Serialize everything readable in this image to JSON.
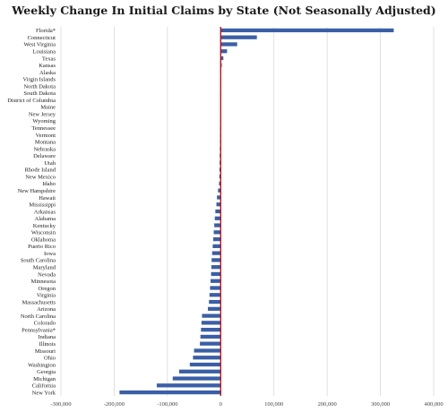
{
  "chart_data": {
    "type": "bar",
    "orientation": "horizontal",
    "title": "Weekly Change In Initial Claims by State (Not Seasonally Adjusted)",
    "xlabel": "",
    "ylabel": "",
    "xlim": [
      -300000,
      400000
    ],
    "x_ticks": [
      -300000,
      -200000,
      -100000,
      0,
      100000,
      200000,
      300000,
      400000
    ],
    "x_tick_labels": [
      "-300,000",
      "-200,000",
      "-100,000",
      "0",
      "100,000",
      "200,000",
      "300,000",
      "400,000"
    ],
    "grid": "vertical",
    "zero_line_color": "#cc0000",
    "bar_color": "#3a5fa6",
    "categories": [
      "Florida*",
      "Connecticut",
      "West Virginia",
      "Louisiana",
      "Texas",
      "Kansas",
      "Alaska",
      "Virgin Islands",
      "North Dakota",
      "South Dakota",
      "District of Columbia",
      "Maine",
      "New Jersey",
      "Wyoming",
      "Tennessee",
      "Vermont",
      "Montana",
      "Nebraska",
      "Delaware",
      "Utah",
      "Rhode Island",
      "New Mexico",
      "Idaho",
      "New Hampshire",
      "Hawaii",
      "Mississippi",
      "Arkansas",
      "Alabama",
      "Kentucky",
      "Wisconsin",
      "Oklahoma",
      "Puerto Rico",
      "Iowa",
      "South Carolina",
      "Maryland",
      "Nevada",
      "Minnesota",
      "Oregon",
      "Virginia",
      "Massachusetts",
      "Arizona",
      "North Carolina",
      "Colorado",
      "Pennsylvania*",
      "Indiana",
      "Illinois",
      "Missouri",
      "Ohio",
      "Washington",
      "Georgia",
      "Michigan",
      "California",
      "New York"
    ],
    "values": [
      325000,
      68000,
      31000,
      12000,
      5000,
      2000,
      500,
      300,
      200,
      100,
      -100,
      -300,
      -500,
      -700,
      -900,
      -1000,
      -1200,
      -1500,
      -1800,
      -2000,
      -2200,
      -2500,
      -3000,
      -5000,
      -7000,
      -8000,
      -10000,
      -11000,
      -12000,
      -13000,
      -14000,
      -15000,
      -16000,
      -17000,
      -17500,
      -18000,
      -19000,
      -20000,
      -21000,
      -22000,
      -24000,
      -35000,
      -36000,
      -37000,
      -38000,
      -39000,
      -50000,
      -52000,
      -58000,
      -78000,
      -90000,
      -120000,
      -190000
    ]
  }
}
